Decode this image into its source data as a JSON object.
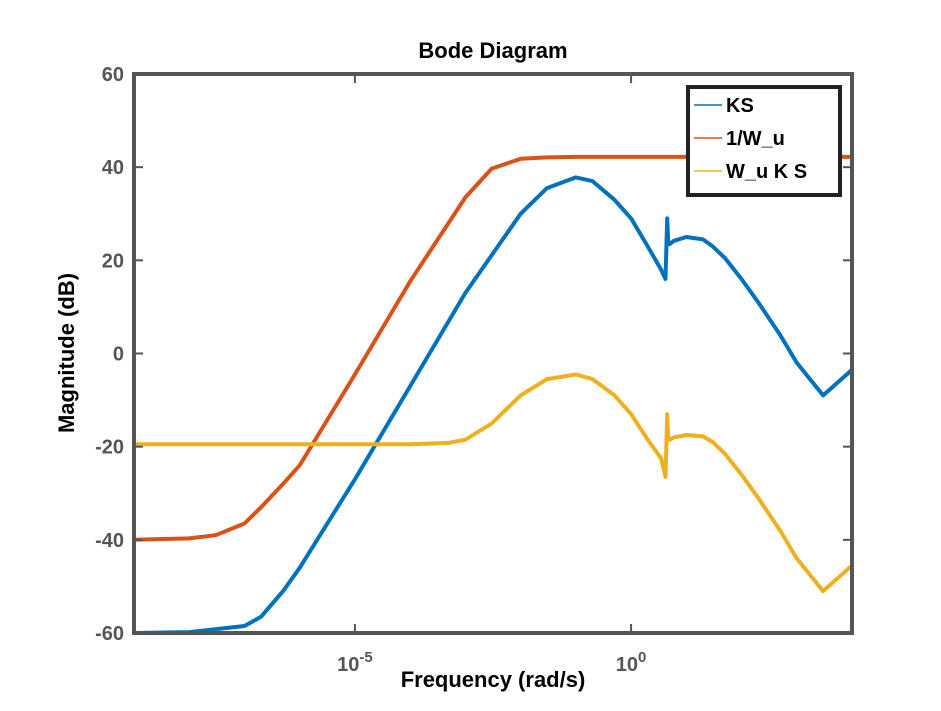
{
  "chart_data": {
    "type": "line",
    "title": "Bode Diagram",
    "xlabel": "Frequency  (rad/s)",
    "ylabel": "Magnitude (dB)",
    "x_scale": "log",
    "xlim": [
      1e-09,
      10000
    ],
    "ylim": [
      -60,
      60
    ],
    "x_ticks": [
      {
        "value": 1e-05,
        "base": "10",
        "exp": "-5"
      },
      {
        "value": 1,
        "base": "10",
        "exp": "0"
      }
    ],
    "y_ticks": [
      {
        "value": 60,
        "label": "60"
      },
      {
        "value": 40,
        "label": "40"
      },
      {
        "value": 20,
        "label": "20"
      },
      {
        "value": 0,
        "label": "0"
      },
      {
        "value": -20,
        "label": "-20"
      },
      {
        "value": -40,
        "label": "-40"
      },
      {
        "value": -60,
        "label": "-60"
      }
    ],
    "grid": false,
    "legend": "top-right",
    "series": [
      {
        "name": "KS",
        "color": "#0072BD",
        "x": [
          1e-09,
          1e-08,
          1e-07,
          2e-07,
          5e-07,
          1e-06,
          1e-05,
          0.0001,
          0.001,
          0.01,
          0.03,
          0.1,
          0.2,
          0.5,
          1,
          2,
          3.5,
          4.2,
          4.5,
          4.7,
          5,
          6,
          10,
          20,
          30,
          50,
          100,
          200,
          500,
          1000,
          3000,
          10000
        ],
        "y": [
          -60,
          -59.8,
          -58.5,
          -56.5,
          -51,
          -46,
          -27,
          -7,
          13,
          30,
          35.5,
          37.8,
          37,
          33,
          29,
          23,
          18,
          16,
          29,
          24,
          23.5,
          24.2,
          25,
          24.5,
          23,
          20.5,
          16,
          11,
          4,
          -2,
          -9,
          -3.5
        ]
      },
      {
        "name": "1/W_u",
        "color": "#D95319",
        "x": [
          1e-09,
          1e-08,
          3e-08,
          1e-07,
          2e-07,
          5e-07,
          1e-06,
          1e-05,
          0.0001,
          0.001,
          0.003,
          0.01,
          0.03,
          0.1,
          1,
          10,
          100,
          1000,
          10000
        ],
        "y": [
          -40,
          -39.7,
          -39,
          -36.5,
          -33,
          -28,
          -24,
          -4.5,
          15.5,
          33.5,
          39.7,
          41.8,
          42.1,
          42.2,
          42.2,
          42.2,
          42.2,
          42.2,
          42.2
        ]
      },
      {
        "name": "W_u K S",
        "color": "#EDB120",
        "x": [
          1e-09,
          1e-07,
          1e-06,
          1e-05,
          0.0001,
          0.0005,
          0.001,
          0.003,
          0.01,
          0.03,
          0.1,
          0.2,
          0.5,
          1,
          2,
          3.5,
          4.2,
          4.5,
          4.7,
          5,
          6,
          10,
          20,
          30,
          50,
          100,
          200,
          500,
          1000,
          3000,
          10000
        ],
        "y": [
          -19.5,
          -19.5,
          -19.5,
          -19.5,
          -19.5,
          -19.2,
          -18.5,
          -15,
          -9,
          -5.5,
          -4.5,
          -5.5,
          -9,
          -13,
          -18.5,
          -22.5,
          -26.5,
          -13,
          -18,
          -18.5,
          -18,
          -17.5,
          -17.8,
          -19,
          -21.5,
          -26,
          -31,
          -38,
          -44,
          -51,
          -45.5
        ]
      }
    ]
  }
}
